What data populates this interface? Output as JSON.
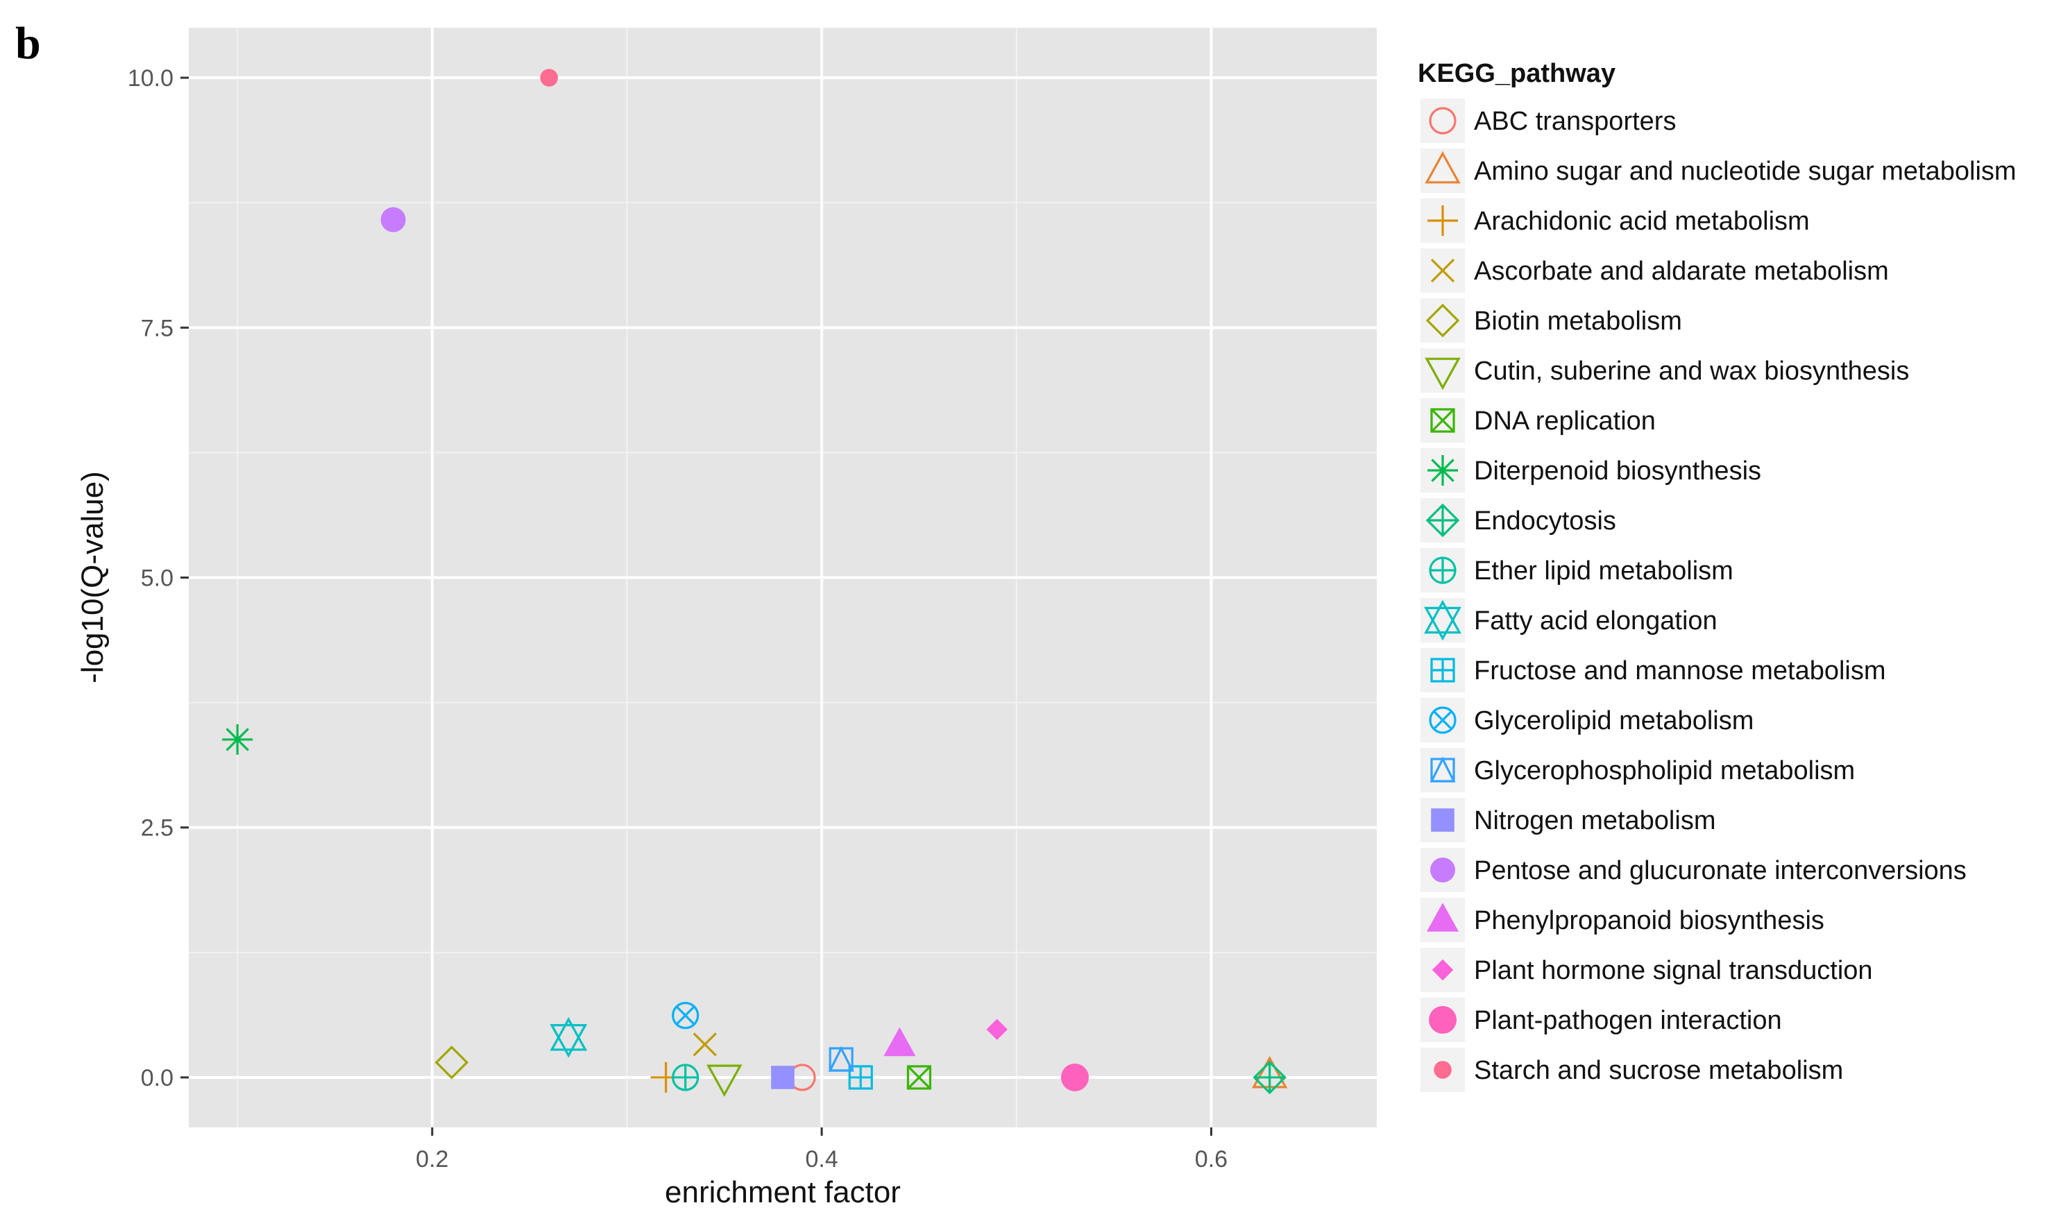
{
  "panel_label": "b",
  "chart_data": {
    "type": "scatter",
    "title": "",
    "xlabel": "enrichment factor",
    "ylabel": "-log10(Q-value)",
    "xlim": [
      0.075,
      0.685
    ],
    "ylim": [
      -0.5,
      10.5
    ],
    "x_ticks": [
      0.2,
      0.4,
      0.6
    ],
    "x_tick_labels": [
      "0.2",
      "0.4",
      "0.6"
    ],
    "y_ticks": [
      0.0,
      2.5,
      5.0,
      7.5,
      10.0
    ],
    "y_tick_labels": [
      "0.0",
      "2.5",
      "5.0",
      "7.5",
      "10.0"
    ],
    "grid": true,
    "legend": {
      "title": "KEGG_pathway",
      "position": "right"
    },
    "series": [
      {
        "name": "ABC transporters",
        "shape": "circle-open",
        "color": "#F8766D",
        "x": 0.39,
        "y": 0.0
      },
      {
        "name": "Amino sugar and nucleotide sugar metabolism",
        "shape": "triangle-open",
        "color": "#EA8331",
        "x": 0.63,
        "y": 0.02
      },
      {
        "name": "Arachidonic acid metabolism",
        "shape": "plus",
        "color": "#D89000",
        "x": 0.32,
        "y": 0.0
      },
      {
        "name": "Ascorbate and aldarate metabolism",
        "shape": "cross",
        "color": "#C09B00",
        "x": 0.34,
        "y": 0.33
      },
      {
        "name": "Biotin metabolism",
        "shape": "diamond-open",
        "color": "#A3A500",
        "x": 0.21,
        "y": 0.15
      },
      {
        "name": "Cutin, suberine and wax biosynthesis",
        "shape": "triangle-down-open",
        "color": "#7CAE00",
        "x": 0.35,
        "y": 0.0
      },
      {
        "name": "DNA replication",
        "shape": "square-cross",
        "color": "#39B600",
        "x": 0.45,
        "y": 0.0
      },
      {
        "name": "Diterpenoid biosynthesis",
        "shape": "asterisk",
        "color": "#00BB4E",
        "x": 0.1,
        "y": 3.38
      },
      {
        "name": "Endocytosis",
        "shape": "diamond-plus",
        "color": "#00BF7D",
        "x": 0.63,
        "y": 0.0
      },
      {
        "name": "Ether lipid metabolism",
        "shape": "circle-plus",
        "color": "#00C1A3",
        "x": 0.33,
        "y": 0.0
      },
      {
        "name": "Fatty acid elongation",
        "shape": "triangles-up-down",
        "color": "#00BFC4",
        "x": 0.27,
        "y": 0.4
      },
      {
        "name": "Fructose and mannose metabolism",
        "shape": "square-plus",
        "color": "#00BAE0",
        "x": 0.42,
        "y": 0.0
      },
      {
        "name": "Glycerolipid metabolism",
        "shape": "circle-cross",
        "color": "#00B0F6",
        "x": 0.33,
        "y": 0.62
      },
      {
        "name": "Glycerophospholipid metabolism",
        "shape": "square-triangle",
        "color": "#35A2FF",
        "x": 0.41,
        "y": 0.18
      },
      {
        "name": "Nitrogen metabolism",
        "shape": "square-filled",
        "color": "#9590FF",
        "x": 0.38,
        "y": 0.0
      },
      {
        "name": "Pentose and glucuronate interconversions",
        "shape": "circle-filled",
        "color": "#C77CFF",
        "x": 0.18,
        "y": 8.58
      },
      {
        "name": "Phenylpropanoid biosynthesis",
        "shape": "triangle-filled",
        "color": "#E76BF3",
        "x": 0.44,
        "y": 0.33
      },
      {
        "name": "Plant hormone signal transduction",
        "shape": "diamond-filled",
        "color": "#FA62DB",
        "x": 0.49,
        "y": 0.48
      },
      {
        "name": "Plant-pathogen interaction",
        "shape": "circle-large-filled",
        "color": "#FF62BC",
        "x": 0.53,
        "y": 0.0
      },
      {
        "name": "Starch and sucrose metabolism",
        "shape": "circle-small-filled",
        "color": "#FF6C91",
        "x": 0.26,
        "y": 10.0
      }
    ]
  }
}
